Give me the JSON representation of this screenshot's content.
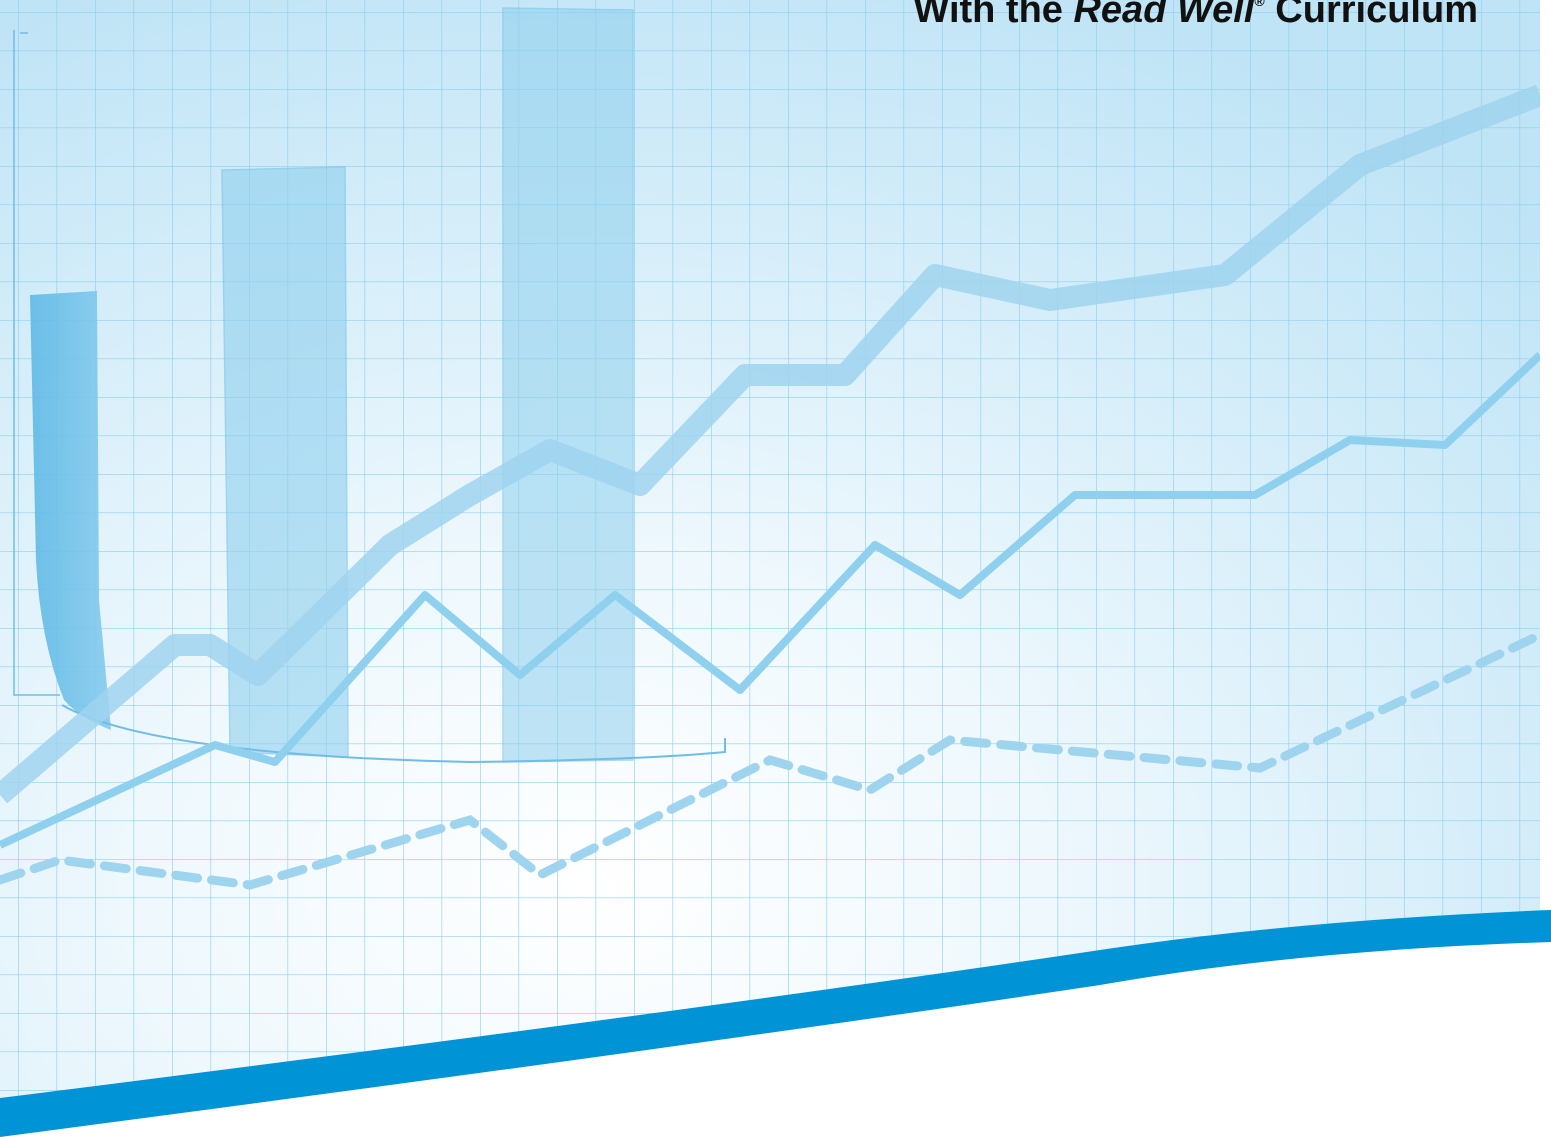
{
  "header": {
    "title_prefix": "With the",
    "title_emphasis": "Read Well",
    "title_mark": "®",
    "title_suffix": "Curriculum"
  }
}
